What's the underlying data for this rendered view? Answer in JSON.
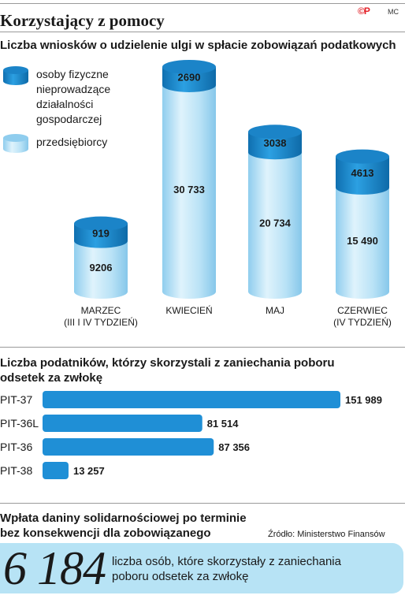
{
  "header": {
    "title": "Korzystający z pomocy",
    "logo": "©P",
    "author": "MC"
  },
  "chart_data": [
    {
      "type": "bar",
      "title": "Liczba wniosków o udzielenie ulgi w spłacie zobowiązań podatkowych",
      "categories": [
        "MARZEC\n(III I IV TYDZIEŃ)",
        "KWIECIEŃ",
        "MAJ",
        "CZERWIEC\n(IV TYDZIEŃ)"
      ],
      "category_lines": [
        [
          "MARZEC",
          "(III I IV TYDZIEŃ)"
        ],
        [
          "KWIECIEŃ"
        ],
        [
          "MAJ"
        ],
        [
          "CZERWIEC",
          "(IV TYDZIEŃ)"
        ]
      ],
      "series": [
        {
          "name": "osoby fizyczne nieprowadzące działalności gospodarczej",
          "name_lines": [
            "osoby fizyczne",
            "nieprowadzące",
            "działalności",
            "gospodarczej"
          ],
          "values": [
            919,
            2690,
            3038,
            4613
          ],
          "labels": [
            "919",
            "2690",
            "3038",
            "4613"
          ],
          "color": "#1f8fd6"
        },
        {
          "name": "przedsiębiorcy",
          "name_lines": [
            "przedsiębiorcy"
          ],
          "values": [
            9206,
            30733,
            20734,
            15490
          ],
          "labels": [
            "9206",
            "30 733",
            "20 734",
            "15 490"
          ],
          "color": "#b9e2f6"
        }
      ],
      "stacked": true,
      "legend": "top-left"
    },
    {
      "type": "bar",
      "orientation": "horizontal",
      "title": "Liczba podatników, którzy skorzystali z zaniechania poboru odsetek za zwłokę",
      "title_lines": [
        "Liczba podatników, którzy skorzystali z zaniechania poboru",
        "odsetek za zwłokę"
      ],
      "categories": [
        "PIT-37",
        "PIT-36L",
        "PIT-36",
        "PIT-38"
      ],
      "values": [
        151989,
        81514,
        87356,
        13257
      ],
      "labels": [
        "151 989",
        "81 514",
        "87 356",
        "13 257"
      ],
      "color": "#1f8fd6"
    }
  ],
  "section3": {
    "title_lines": [
      "Wpłata daniny solidarnościowej po terminie",
      "bez konsekwencji dla zobowiązanego"
    ],
    "source": "Źródło: Ministerstwo Finansów",
    "big_number": "6 184",
    "description": "liczba osób, które skorzystały z zaniechania poboru odsetek za zwłokę"
  }
}
